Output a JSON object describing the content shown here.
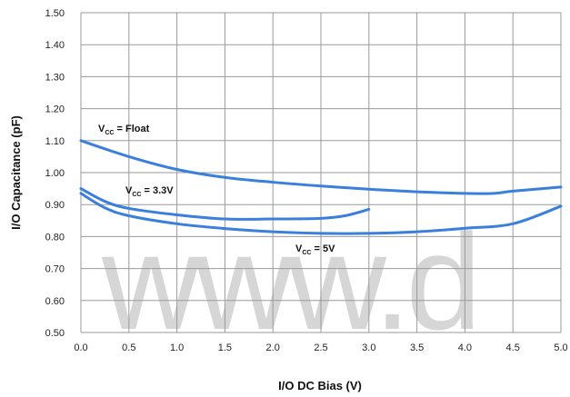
{
  "chart_data": {
    "type": "line",
    "xlabel": "I/O DC Bias (V)",
    "ylabel": "I/O Capacitance (pF)",
    "xlim": [
      0,
      5
    ],
    "ylim": [
      0.5,
      1.5
    ],
    "x_ticks": [
      "0.0",
      "0.5",
      "1.0",
      "1.5",
      "2.0",
      "2.5",
      "3.0",
      "3.5",
      "4.0",
      "4.5",
      "5.0"
    ],
    "y_ticks": [
      "0.50",
      "0.60",
      "0.70",
      "0.80",
      "0.90",
      "1.00",
      "1.10",
      "1.20",
      "1.30",
      "1.40",
      "1.50"
    ],
    "grid": true,
    "line_color": "#3a7fdc",
    "series": [
      {
        "name": "Float",
        "label_prefix": "V",
        "label_sub": "CC",
        "label_suffix": "= Float",
        "x": [
          0.0,
          0.5,
          1.0,
          1.5,
          2.0,
          2.5,
          3.0,
          3.5,
          4.0,
          4.3,
          4.5,
          5.0
        ],
        "y": [
          1.1,
          1.05,
          1.01,
          0.985,
          0.97,
          0.958,
          0.948,
          0.94,
          0.935,
          0.935,
          0.942,
          0.955
        ]
      },
      {
        "name": "3.3V",
        "label_prefix": "V",
        "label_sub": "CC",
        "label_suffix": "= 3.3V",
        "x": [
          0.0,
          0.25,
          0.5,
          1.0,
          1.5,
          2.0,
          2.5,
          2.75,
          3.0
        ],
        "y": [
          0.95,
          0.91,
          0.888,
          0.868,
          0.855,
          0.855,
          0.857,
          0.865,
          0.885
        ]
      },
      {
        "name": "5V",
        "label_prefix": "V",
        "label_sub": "CC",
        "label_suffix": "= 5V",
        "x": [
          0.0,
          0.25,
          0.5,
          1.0,
          1.5,
          2.0,
          2.5,
          3.0,
          3.5,
          4.0,
          4.5,
          5.0
        ],
        "y": [
          0.935,
          0.89,
          0.865,
          0.84,
          0.825,
          0.815,
          0.81,
          0.81,
          0.815,
          0.826,
          0.84,
          0.895
        ]
      }
    ]
  },
  "watermark": "www.d"
}
